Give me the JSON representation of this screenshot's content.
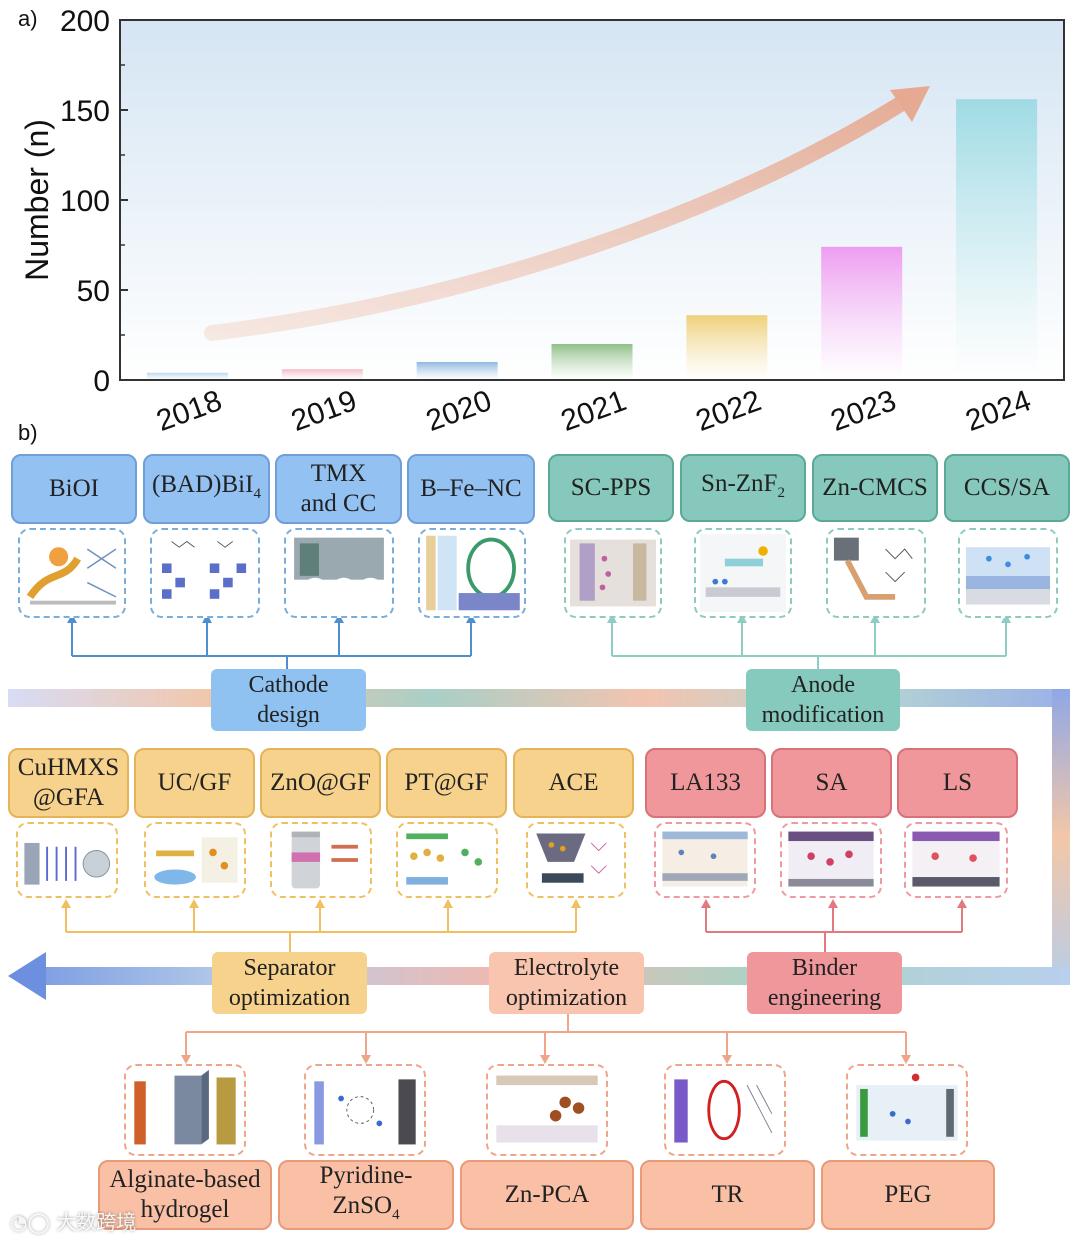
{
  "panel_a": {
    "label": "a)"
  },
  "panel_b": {
    "label": "b)"
  },
  "chart_data": {
    "type": "bar",
    "title": "",
    "xlabel": "",
    "ylabel": "Number (n)",
    "ylim": [
      0,
      200
    ],
    "yticks": [
      "0",
      "50",
      "100",
      "150",
      "200"
    ],
    "categories": [
      "2018",
      "2019",
      "2020",
      "2021",
      "2022",
      "2023",
      "2024"
    ],
    "values": [
      4,
      6,
      10,
      20,
      36,
      74,
      156
    ],
    "colors": [
      "#bcd6ec",
      "#f2bcc6",
      "#8fb8e0",
      "#8fbf86",
      "#efd07a",
      "#ee9cf0",
      "#9fdbe4"
    ],
    "trend_arrow_color": "#e8b6a2"
  },
  "cathode": {
    "label": "Cathode design",
    "items": [
      {
        "label": "BiOI",
        "sub": ""
      },
      {
        "label": "(BAD)BiI",
        "sub": "4"
      },
      {
        "label": "TMX and CC",
        "sub": ""
      },
      {
        "label": "B–Fe–NC",
        "sub": ""
      }
    ]
  },
  "anode": {
    "label": "Anode modification",
    "items": [
      {
        "label": "SC-PPS",
        "sub": ""
      },
      {
        "label": "Sn-ZnF",
        "sub": "2"
      },
      {
        "label": "Zn-CMCS",
        "sub": ""
      },
      {
        "label": "CCS/SA",
        "sub": ""
      }
    ]
  },
  "separator": {
    "label": "Separator optimization",
    "items": [
      "CuHMXS @GFA",
      "UC/GF",
      "ZnO@GF",
      "PT@GF",
      "ACE"
    ]
  },
  "binder": {
    "label": "Binder engineering",
    "items": [
      "LA133",
      "SA",
      "LS"
    ]
  },
  "electrolyte": {
    "label": "Electrolyte optimization",
    "items": [
      {
        "label": "Alginate-based hydrogel",
        "sub": ""
      },
      {
        "label": "Pyridine- ZnSO",
        "sub": "4"
      },
      {
        "label": "Zn-PCA",
        "sub": ""
      },
      {
        "label": "TR",
        "sub": ""
      },
      {
        "label": "PEG",
        "sub": ""
      }
    ]
  },
  "watermark": {
    "text": "大数跨境"
  },
  "colors": {
    "blue": "#92c1f2",
    "teal": "#86c9bc",
    "yellow": "#f6d28c",
    "red": "#f0979c",
    "salmon": "#f9c0a6"
  }
}
